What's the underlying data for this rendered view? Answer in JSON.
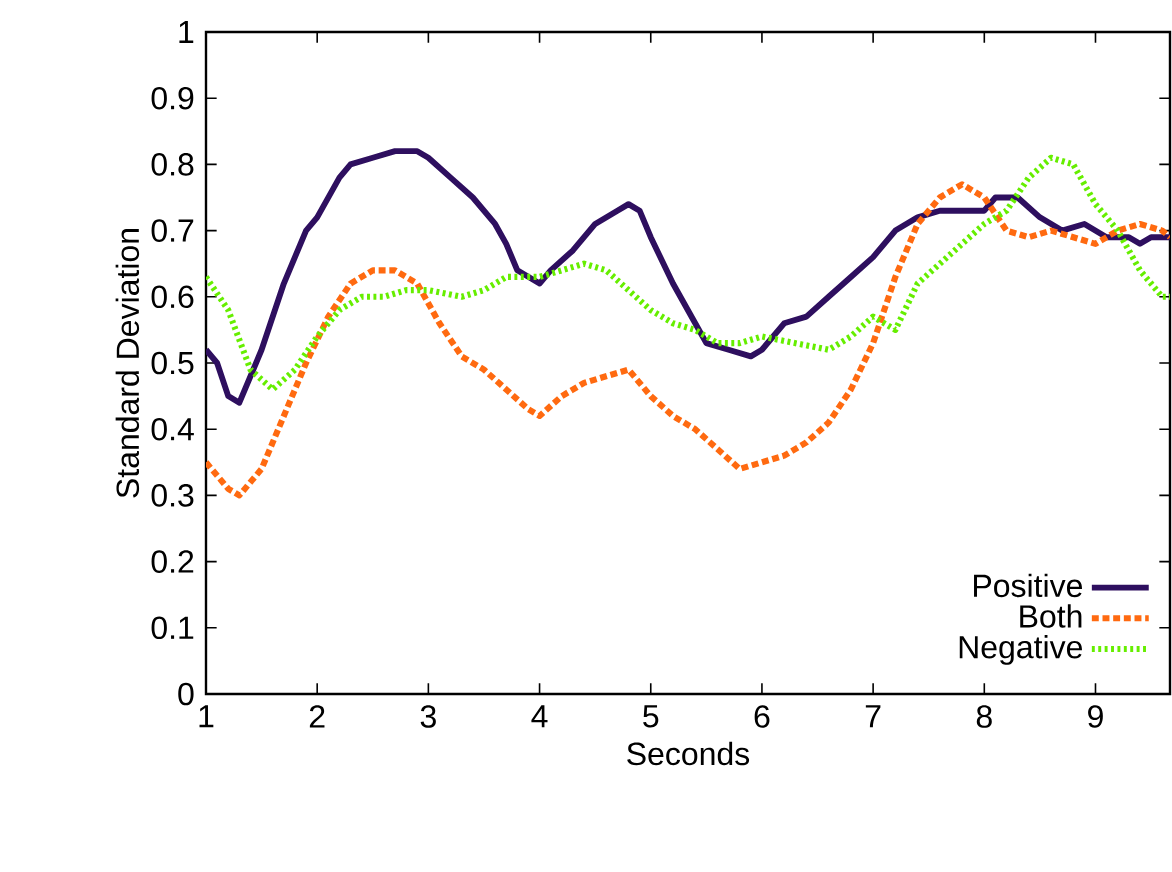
{
  "chart_data": {
    "type": "line",
    "xlabel": "Seconds",
    "ylabel": "Standard Deviation",
    "xlim": [
      1,
      9.67
    ],
    "ylim": [
      0,
      1
    ],
    "xticks": [
      1,
      2,
      3,
      4,
      5,
      6,
      7,
      8,
      9
    ],
    "yticks": [
      0,
      0.1,
      0.2,
      0.3,
      0.4,
      0.5,
      0.6,
      0.7,
      0.8,
      0.9,
      1
    ],
    "legend": "bottom right",
    "grid": false,
    "series": [
      {
        "name": "Positive",
        "color": "#2e0f5f",
        "line_style": "solid",
        "x": [
          1.0,
          1.1,
          1.2,
          1.3,
          1.5,
          1.7,
          1.9,
          2.0,
          2.2,
          2.3,
          2.5,
          2.7,
          2.9,
          3.0,
          3.2,
          3.4,
          3.6,
          3.7,
          3.8,
          4.0,
          4.1,
          4.3,
          4.5,
          4.7,
          4.8,
          4.9,
          5.0,
          5.2,
          5.4,
          5.5,
          5.7,
          5.9,
          6.0,
          6.2,
          6.4,
          6.6,
          6.8,
          7.0,
          7.2,
          7.4,
          7.6,
          7.8,
          8.0,
          8.1,
          8.3,
          8.5,
          8.7,
          8.9,
          9.1,
          9.3,
          9.4,
          9.5,
          9.67
        ],
        "values": [
          0.52,
          0.5,
          0.45,
          0.44,
          0.52,
          0.62,
          0.7,
          0.72,
          0.78,
          0.8,
          0.81,
          0.82,
          0.82,
          0.81,
          0.78,
          0.75,
          0.71,
          0.68,
          0.64,
          0.62,
          0.64,
          0.67,
          0.71,
          0.73,
          0.74,
          0.73,
          0.69,
          0.62,
          0.56,
          0.53,
          0.52,
          0.51,
          0.52,
          0.56,
          0.57,
          0.6,
          0.63,
          0.66,
          0.7,
          0.72,
          0.73,
          0.73,
          0.73,
          0.75,
          0.75,
          0.72,
          0.7,
          0.71,
          0.69,
          0.69,
          0.68,
          0.69,
          0.69
        ]
      },
      {
        "name": "Both",
        "color": "#ff6a10",
        "line_style": "dashed",
        "x": [
          1.0,
          1.2,
          1.3,
          1.5,
          1.7,
          1.9,
          2.1,
          2.3,
          2.5,
          2.7,
          2.9,
          3.1,
          3.3,
          3.5,
          3.7,
          3.9,
          4.0,
          4.2,
          4.4,
          4.6,
          4.8,
          5.0,
          5.2,
          5.4,
          5.6,
          5.8,
          6.0,
          6.2,
          6.4,
          6.6,
          6.8,
          7.0,
          7.2,
          7.4,
          7.6,
          7.8,
          8.0,
          8.2,
          8.4,
          8.6,
          8.8,
          9.0,
          9.2,
          9.4,
          9.6,
          9.67
        ],
        "values": [
          0.35,
          0.31,
          0.3,
          0.34,
          0.42,
          0.5,
          0.57,
          0.62,
          0.64,
          0.64,
          0.62,
          0.56,
          0.51,
          0.49,
          0.46,
          0.43,
          0.42,
          0.45,
          0.47,
          0.48,
          0.49,
          0.45,
          0.42,
          0.4,
          0.37,
          0.34,
          0.35,
          0.36,
          0.38,
          0.41,
          0.46,
          0.53,
          0.63,
          0.71,
          0.75,
          0.77,
          0.75,
          0.7,
          0.69,
          0.7,
          0.69,
          0.68,
          0.7,
          0.71,
          0.7,
          0.69
        ]
      },
      {
        "name": "Negative",
        "color": "#66ee00",
        "line_style": "dotted",
        "x": [
          1.0,
          1.2,
          1.4,
          1.6,
          1.8,
          2.0,
          2.2,
          2.4,
          2.6,
          2.8,
          3.0,
          3.3,
          3.5,
          3.7,
          4.0,
          4.2,
          4.4,
          4.6,
          4.8,
          5.0,
          5.2,
          5.4,
          5.6,
          5.8,
          6.0,
          6.3,
          6.6,
          6.8,
          7.0,
          7.2,
          7.4,
          7.6,
          7.8,
          8.0,
          8.2,
          8.4,
          8.6,
          8.8,
          9.0,
          9.2,
          9.4,
          9.6,
          9.67
        ],
        "values": [
          0.63,
          0.58,
          0.49,
          0.46,
          0.49,
          0.54,
          0.58,
          0.6,
          0.6,
          0.61,
          0.61,
          0.6,
          0.61,
          0.63,
          0.63,
          0.64,
          0.65,
          0.64,
          0.61,
          0.58,
          0.56,
          0.55,
          0.53,
          0.53,
          0.54,
          0.53,
          0.52,
          0.54,
          0.57,
          0.55,
          0.62,
          0.65,
          0.68,
          0.71,
          0.73,
          0.78,
          0.81,
          0.8,
          0.74,
          0.7,
          0.64,
          0.6,
          0.6
        ]
      }
    ]
  }
}
